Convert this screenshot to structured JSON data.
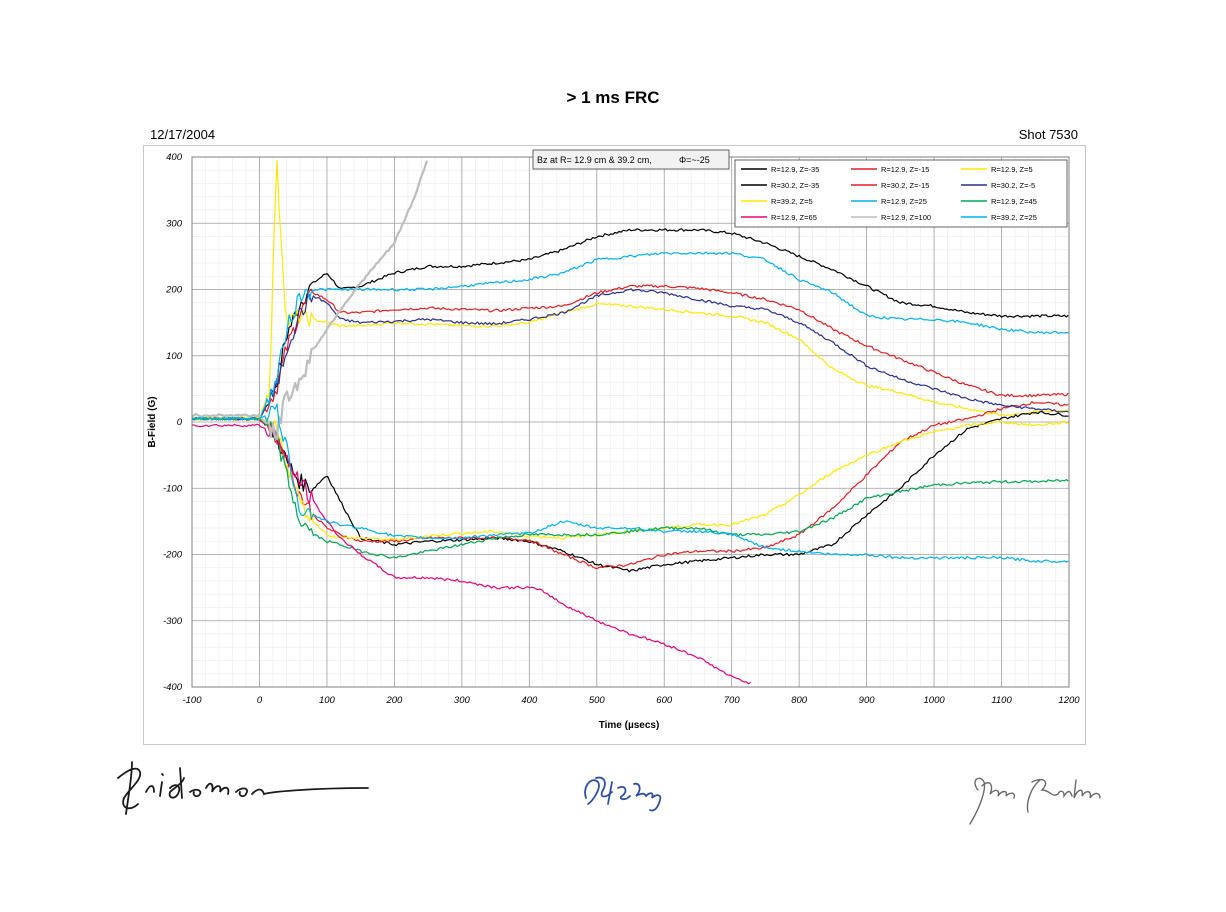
{
  "page": {
    "title": "> 1 ms FRC",
    "date": "12/17/2004",
    "shot": "Shot 7530"
  },
  "chart_data": {
    "type": "line",
    "title": "> 1 ms FRC",
    "xlabel": "Time (µsecs)",
    "ylabel": "B-Field (G)",
    "xlim": [
      -100,
      1200
    ],
    "ylim": [
      -400,
      400
    ],
    "xticks": [
      "-100",
      "0",
      "100",
      "200",
      "300",
      "400",
      "500",
      "600",
      "700",
      "800",
      "900",
      "1000",
      "1100",
      "1200"
    ],
    "yticks": [
      "400",
      "300",
      "200",
      "100",
      "0",
      "-100",
      "-200",
      "-300",
      "-400"
    ],
    "grid": true,
    "legend_placement": "top-right",
    "annotation": {
      "text": "Bz at R= 12.9 cm & 39.2 cm,",
      "phi": "Φ=~-25"
    },
    "series": [
      {
        "name": "R=12.9, Z=-35",
        "color": "#000000",
        "x": [
          -100,
          0,
          25,
          40,
          60,
          80,
          100,
          120,
          150,
          200,
          250,
          300,
          350,
          400,
          450,
          500,
          550,
          600,
          650,
          700,
          750,
          800,
          850,
          900,
          950,
          1000,
          1050,
          1100,
          1150,
          1200
        ],
        "y": [
          5,
          5,
          60,
          130,
          180,
          210,
          225,
          200,
          205,
          225,
          235,
          235,
          240,
          245,
          260,
          280,
          290,
          290,
          290,
          285,
          270,
          250,
          230,
          205,
          180,
          175,
          165,
          160,
          160,
          160
        ]
      },
      {
        "name": "R=12.9, Z=-15",
        "color": "#e31e24",
        "x": [
          -100,
          0,
          25,
          40,
          60,
          80,
          100,
          120,
          150,
          200,
          250,
          300,
          350,
          400,
          450,
          500,
          550,
          600,
          650,
          700,
          750,
          800,
          850,
          900,
          950,
          1000,
          1050,
          1100,
          1150,
          1200
        ],
        "y": [
          5,
          5,
          50,
          110,
          165,
          195,
          185,
          165,
          165,
          170,
          172,
          170,
          168,
          172,
          175,
          195,
          205,
          205,
          202,
          195,
          185,
          170,
          140,
          115,
          95,
          75,
          55,
          40,
          40,
          42
        ]
      },
      {
        "name": "R=12.9, Z=5",
        "color": "#ffe800",
        "x": [
          -100,
          0,
          15,
          25,
          40,
          60,
          80,
          100,
          120,
          150,
          200,
          250,
          300,
          350,
          400,
          450,
          500,
          550,
          600,
          650,
          700,
          750,
          800,
          850,
          900,
          950,
          1000,
          1050,
          1100,
          1150,
          1200
        ],
        "y": [
          5,
          5,
          50,
          400,
          150,
          160,
          155,
          150,
          145,
          145,
          150,
          148,
          145,
          145,
          150,
          165,
          178,
          175,
          170,
          165,
          160,
          150,
          125,
          80,
          55,
          45,
          30,
          20,
          10,
          15,
          18
        ]
      },
      {
        "name": "R=30.2, Z=-35",
        "color": "#000000",
        "x": [
          -100,
          0,
          25,
          40,
          60,
          80,
          100,
          120,
          150,
          200,
          250,
          300,
          350,
          400,
          450,
          500,
          550,
          600,
          650,
          700,
          750,
          800,
          850,
          900,
          950,
          1000,
          1050,
          1100,
          1150,
          1200
        ],
        "y": [
          5,
          5,
          -20,
          -60,
          -90,
          -100,
          -80,
          -120,
          -175,
          -185,
          -180,
          -178,
          -175,
          -180,
          -195,
          -215,
          -225,
          -215,
          -210,
          -205,
          -200,
          -200,
          -185,
          -140,
          -100,
          -50,
          -10,
          5,
          15,
          10
        ]
      },
      {
        "name": "R=30.2, Z=-15",
        "color": "#e31e24",
        "x": [
          -100,
          0,
          25,
          40,
          60,
          80,
          100,
          120,
          150,
          200,
          250,
          300,
          350,
          400,
          450,
          500,
          550,
          600,
          650,
          700,
          750,
          800,
          850,
          900,
          950,
          1000,
          1050,
          1100,
          1150,
          1200
        ],
        "y": [
          5,
          5,
          -20,
          -60,
          -110,
          -140,
          -160,
          -170,
          -180,
          -180,
          -175,
          -175,
          -175,
          -178,
          -200,
          -220,
          -215,
          -200,
          -195,
          -195,
          -190,
          -170,
          -130,
          -80,
          -30,
          -5,
          5,
          20,
          30,
          25
        ]
      },
      {
        "name": "R=30.2, Z=-5",
        "color": "#2b2f8e",
        "x": [
          -100,
          0,
          25,
          40,
          60,
          80,
          100,
          120,
          150,
          200,
          250,
          300,
          350,
          400,
          450,
          500,
          550,
          600,
          650,
          700,
          750,
          800,
          850,
          900,
          950,
          1000,
          1050,
          1100,
          1150,
          1200
        ],
        "y": [
          5,
          5,
          50,
          110,
          165,
          190,
          180,
          155,
          150,
          152,
          155,
          150,
          148,
          155,
          165,
          190,
          200,
          195,
          185,
          175,
          170,
          150,
          120,
          85,
          65,
          50,
          35,
          25,
          20,
          15
        ]
      },
      {
        "name": "R=39.2, Z=5",
        "color": "#ffe800",
        "x": [
          -100,
          0,
          25,
          40,
          60,
          80,
          100,
          120,
          150,
          200,
          250,
          300,
          350,
          400,
          450,
          500,
          550,
          600,
          650,
          700,
          750,
          800,
          850,
          900,
          950,
          1000,
          1050,
          1100,
          1150,
          1200
        ],
        "y": [
          5,
          5,
          -10,
          -60,
          -120,
          -150,
          -170,
          -175,
          -175,
          -178,
          -172,
          -168,
          -165,
          -172,
          -175,
          -170,
          -165,
          -160,
          -155,
          -155,
          -140,
          -110,
          -75,
          -50,
          -30,
          -15,
          -5,
          0,
          -5,
          0
        ]
      },
      {
        "name": "R=12.9, Z=25",
        "color": "#00b0f0",
        "x": [
          -100,
          0,
          25,
          40,
          60,
          80,
          100,
          120,
          150,
          200,
          250,
          300,
          350,
          400,
          450,
          500,
          550,
          600,
          650,
          700,
          750,
          800,
          850,
          900,
          950,
          1000,
          1050,
          1100,
          1150,
          1200
        ],
        "y": [
          5,
          5,
          60,
          140,
          190,
          200,
          200,
          200,
          200,
          200,
          200,
          205,
          210,
          215,
          225,
          245,
          250,
          255,
          255,
          255,
          245,
          215,
          195,
          160,
          155,
          155,
          150,
          140,
          135,
          135
        ]
      },
      {
        "name": "R=30.2, Z=-5",
        "color": "#2b2f8e",
        "x": [],
        "y": []
      },
      {
        "name": "R=12.9, Z=45",
        "color": "#00a650",
        "x": [
          -100,
          0,
          25,
          40,
          60,
          80,
          100,
          120,
          150,
          200,
          250,
          300,
          350,
          400,
          450,
          500,
          550,
          600,
          650,
          700,
          750,
          800,
          850,
          900,
          950,
          1000,
          1050,
          1100,
          1150,
          1200
        ],
        "y": [
          5,
          5,
          -20,
          -80,
          -150,
          -170,
          -180,
          -185,
          -195,
          -205,
          -195,
          -185,
          -175,
          -170,
          -170,
          -170,
          -165,
          -160,
          -160,
          -170,
          -170,
          -165,
          -145,
          -115,
          -105,
          -95,
          -92,
          -90,
          -90,
          -88
        ]
      },
      {
        "name": "R=12.9, Z=65",
        "color": "#e6007e",
        "x": [
          -100,
          0,
          25,
          40,
          60,
          80,
          100,
          120,
          150,
          200,
          250,
          300,
          350,
          400,
          420,
          450,
          500,
          550,
          600,
          650,
          700,
          730
        ],
        "y": [
          -5,
          -5,
          -20,
          -60,
          -90,
          -120,
          -150,
          -175,
          -200,
          -235,
          -235,
          -240,
          -250,
          -250,
          -255,
          -275,
          -300,
          -320,
          -335,
          -355,
          -385,
          -395
        ]
      },
      {
        "name": "R=12.9, Z=100",
        "color": "#bdbdbd",
        "x": [
          -100,
          0,
          25,
          40,
          60,
          80,
          100,
          120,
          150,
          200,
          230,
          250
        ],
        "y": [
          10,
          10,
          -20,
          40,
          60,
          110,
          140,
          170,
          210,
          270,
          340,
          400
        ]
      },
      {
        "name": "R=39.2, Z=25",
        "color": "#00b0f0",
        "x": [
          -100,
          0,
          25,
          40,
          60,
          80,
          100,
          120,
          150,
          200,
          250,
          300,
          350,
          400,
          450,
          500,
          550,
          600,
          650,
          700,
          750,
          800,
          850,
          900,
          950,
          1000,
          1050,
          1100,
          1150,
          1200
        ],
        "y": [
          5,
          5,
          20,
          -40,
          -130,
          -140,
          -150,
          -155,
          -160,
          -172,
          -175,
          -175,
          -170,
          -168,
          -150,
          -160,
          -160,
          -165,
          -165,
          -170,
          -190,
          -195,
          -200,
          -200,
          -205,
          -205,
          -205,
          -205,
          -210,
          -210
        ]
      }
    ]
  },
  "legend": {
    "items": [
      {
        "label": "R=12.9, Z=-35",
        "color": "#000000"
      },
      {
        "label": "R=12.9, Z=-15",
        "color": "#e31e24"
      },
      {
        "label": "R=12.9, Z=5",
        "color": "#ffe800"
      },
      {
        "label": "R=30.2, Z=-35",
        "color": "#000000"
      },
      {
        "label": "R=30.2, Z=-15",
        "color": "#e31e24"
      },
      {
        "label": "R=30.2, Z=-5",
        "color": "#2b2f8e"
      },
      {
        "label": "R=39.2, Z=5",
        "color": "#ffe800"
      },
      {
        "label": "R=12.9, Z=25",
        "color": "#00b0f0"
      },
      {
        "label": "R=12.9, Z=45",
        "color": "#00a650"
      },
      {
        "label": "R=12.9, Z=65",
        "color": "#e6007e"
      },
      {
        "label": "R=12.9, Z=100",
        "color": "#bdbdbd"
      },
      {
        "label": "R=39.2, Z=25",
        "color": "#00b0f0"
      }
    ]
  },
  "signatures": [
    "handwritten-signature-1",
    "handwritten-signature-2",
    "handwritten-signature-3"
  ]
}
